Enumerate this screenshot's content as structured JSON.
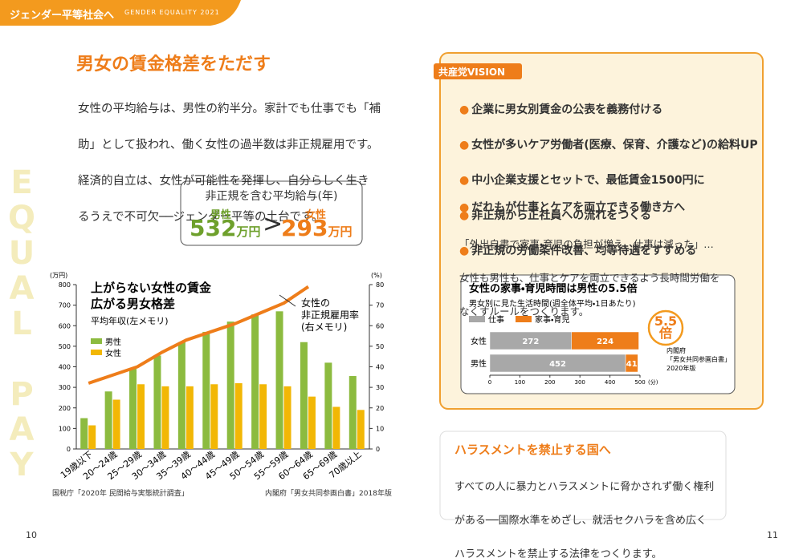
{
  "header": {
    "title": "ジェンダー平等社会へ",
    "subtitle": "GENDER EQUALITY 2021"
  },
  "left": {
    "heading": "男女の賃金格差をただす",
    "paragraph": [
      "女性の平均給与は、男性の約半分。家計でも仕事でも「補",
      "助」として扱われ、働く女性の過半数は非正規雇用です。",
      "経済的自立は、女性が可能性を発揮し、自分らしく生き",
      "るうえで不可欠──ジェンダー平等の土台です。"
    ],
    "side_text": "EQUAL PAY",
    "salary_box": {
      "title": "非正規を含む平均給与(年)",
      "men": {
        "label": "男性",
        "value": "532",
        "unit": "万円"
      },
      "comparator": ">",
      "women": {
        "label": "女性",
        "value": "293",
        "unit": "万円"
      }
    }
  },
  "chart_data": [
    {
      "type": "bar",
      "title": "上がらない女性の賃金\n広がる男女格差",
      "subtitle": "平均年収(左メモリ)",
      "ylabel": "(万円)",
      "y2label": "(%)",
      "categories": [
        "19歳以下",
        "20〜24歳",
        "25〜29歳",
        "30〜34歳",
        "35〜39歳",
        "40〜44歳",
        "45〜49歳",
        "50〜54歳",
        "55〜59歳",
        "60〜64歳",
        "65〜69歳",
        "70歳以上"
      ],
      "series": [
        {
          "name": "男性",
          "color": "#8cbb3f",
          "values": [
            150,
            280,
            390,
            455,
            520,
            570,
            620,
            655,
            670,
            520,
            420,
            355
          ]
        },
        {
          "name": "女性",
          "color": "#f2b705",
          "values": [
            115,
            240,
            315,
            305,
            305,
            315,
            320,
            315,
            305,
            255,
            205,
            190
          ]
        },
        {
          "name": "女性の\n非正規雇用率\n(右メモリ)",
          "type": "line",
          "axis": "y2",
          "color": "#ee7d1a",
          "values": [
            32,
            36,
            40,
            47,
            53,
            57,
            61,
            66,
            71,
            79,
            null,
            null
          ]
        }
      ],
      "ylim": [
        0,
        800
      ],
      "yticks": [
        0,
        100,
        200,
        300,
        400,
        500,
        600,
        700,
        800
      ],
      "y2lim": [
        0,
        80
      ],
      "y2ticks": [
        0,
        10,
        20,
        30,
        40,
        50,
        60,
        70,
        80
      ]
    },
    {
      "type": "bar",
      "orientation": "horizontal",
      "stacked": true,
      "title": "女性の家事・育児時間は男性の5.5倍",
      "subtitle": "男女別に見た生活時間(週全体平均・1日あたり)",
      "categories": [
        "女性",
        "男性"
      ],
      "series": [
        {
          "name": "仕事",
          "color": "#a8a8a8",
          "values": [
            272,
            452
          ]
        },
        {
          "name": "家事・育児",
          "color": "#ee7d1a",
          "values": [
            224,
            41
          ]
        }
      ],
      "xlim": [
        0,
        500
      ],
      "xticks": [
        0,
        100,
        200,
        300,
        400,
        500
      ],
      "xlabel": "(分)",
      "annotation": "5.5\n倍",
      "source": "内閣府\n「男女共同参画白書」\n2020年版"
    }
  ],
  "sources": [
    "国税庁「2020年 民間給与実態統計調査」",
    "内閣府「男女共同参画白書」2018年版"
  ],
  "vision": {
    "tag": "共産党VISION",
    "bullets": [
      "企業に男女別賃金の公表を義務付ける",
      "女性が多いケア労働者(医療、保育、介護など)の給料UP",
      "中小企業支援とセットで、最低賃金1500円に",
      "非正規から正社員への流れをつくる",
      "非正規の労働条件改善、均等待遇をすすめる"
    ],
    "heading": "だれもが仕事とケアを両立できる働き方へ",
    "paragraph": [
      "「外出自粛で家事・育児の負担が増え、仕事は減った」…",
      "女性も男性も、仕事とケアを両立できるよう長時間労働を",
      "なくすルールをつくります。"
    ]
  },
  "harassment": {
    "title": "ハラスメントを禁止する国へ",
    "paragraph": [
      "すべての人に暴力とハラスメントに脅かされず働く権利",
      "がある──国際水準をめざし、就活セクハラを含め広く",
      "ハラスメントを禁止する法律をつくります。"
    ]
  },
  "page_numbers": [
    "10",
    "11"
  ]
}
